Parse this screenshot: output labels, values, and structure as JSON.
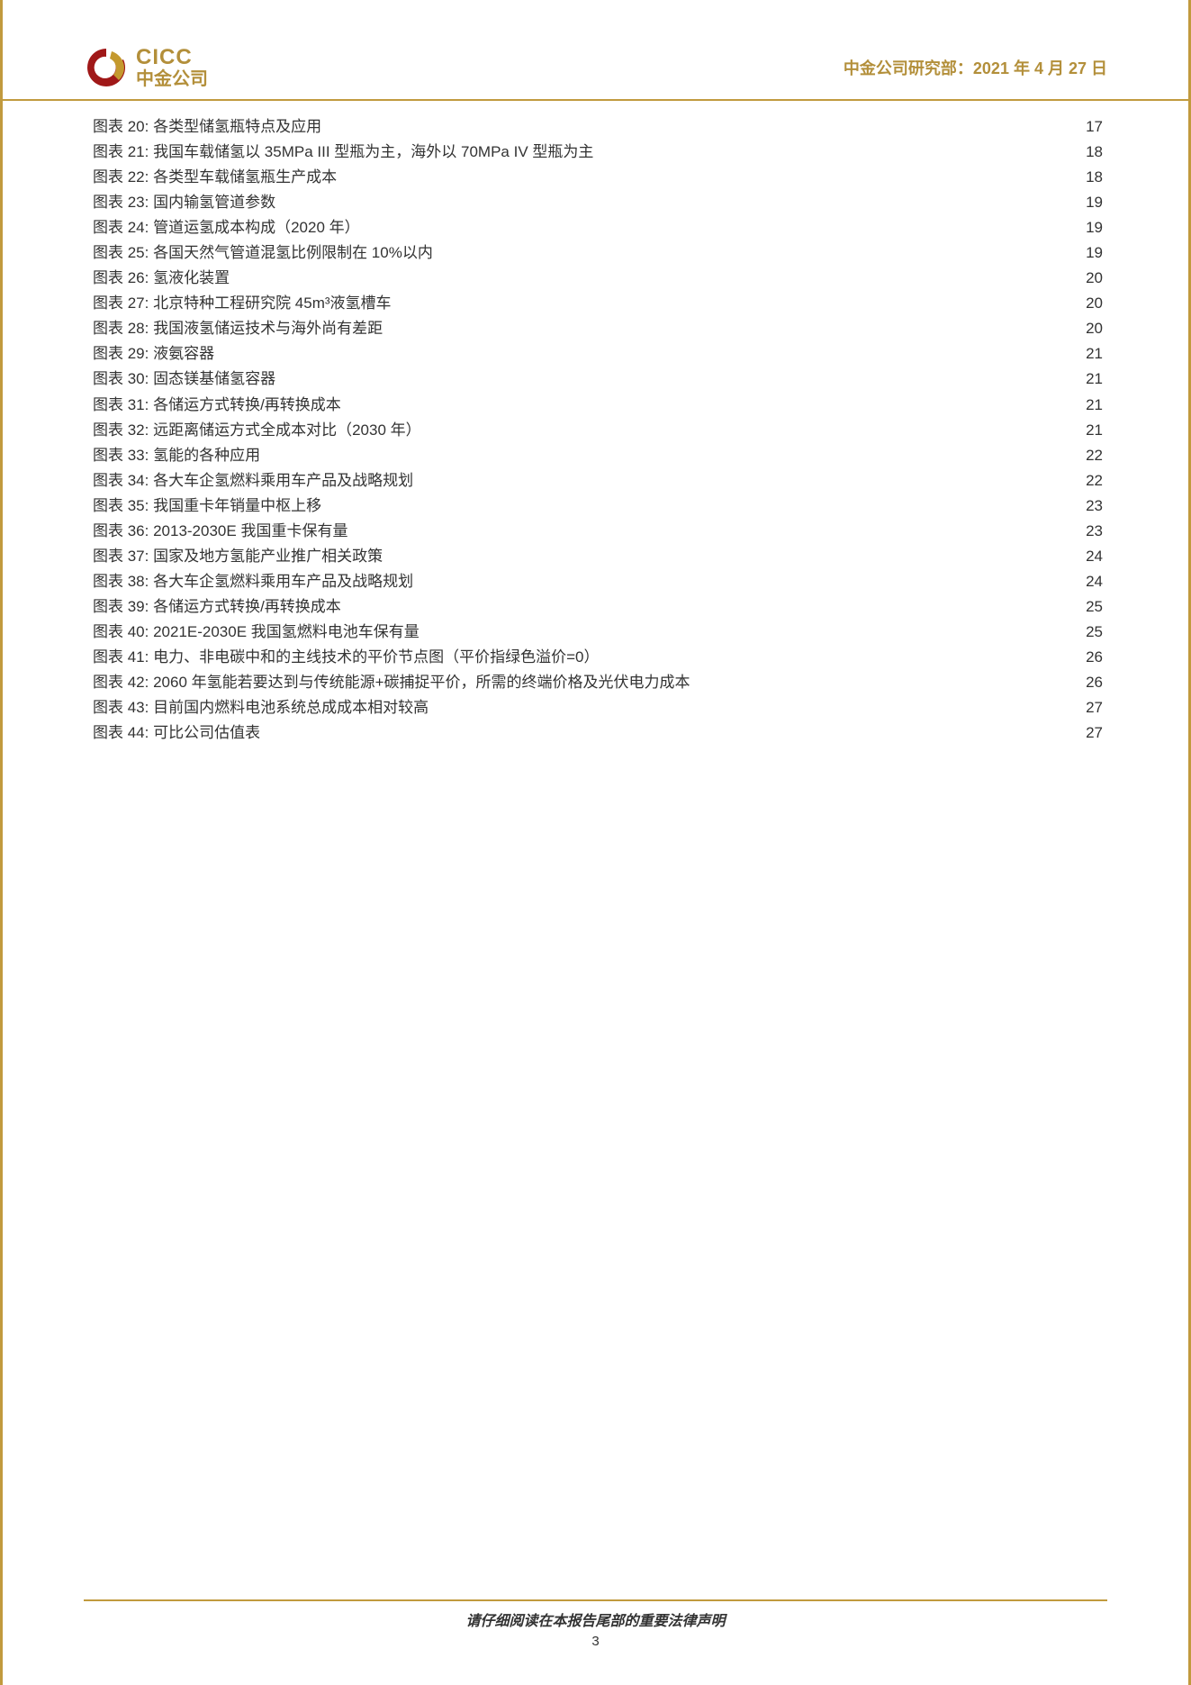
{
  "header": {
    "logo_en": "CICC",
    "logo_cn": "中金公司",
    "right_text": "中金公司研究部：2021 年 4 月 27 日"
  },
  "colors": {
    "accent": "#c19a3e",
    "accent_text": "#b38f3a",
    "logo_red": "#a01818",
    "logo_gold": "#c4992e",
    "text": "#333333",
    "bg": "#ffffff"
  },
  "typography": {
    "body_font": "Microsoft YaHei",
    "toc_fontsize": 17,
    "header_right_fontsize": 18,
    "logo_en_fontsize": 24,
    "logo_cn_fontsize": 20,
    "footer_fontsize": 16
  },
  "toc": {
    "prefix": "图表 ",
    "items": [
      {
        "num": "20",
        "title": "各类型储氢瓶特点及应用",
        "page": "17"
      },
      {
        "num": "21",
        "title": "我国车载储氢以 35MPa III 型瓶为主，海外以 70MPa IV 型瓶为主",
        "page": "18"
      },
      {
        "num": "22",
        "title": "各类型车载储氢瓶生产成本",
        "page": "18"
      },
      {
        "num": "23",
        "title": "国内输氢管道参数",
        "page": "19"
      },
      {
        "num": "24",
        "title": "管道运氢成本构成（2020 年）",
        "page": "19"
      },
      {
        "num": "25",
        "title": "各国天然气管道混氢比例限制在 10%以内",
        "page": "19"
      },
      {
        "num": "26",
        "title": "氢液化装置",
        "page": "20"
      },
      {
        "num": "27",
        "title": "北京特种工程研究院 45m³液氢槽车",
        "page": "20"
      },
      {
        "num": "28",
        "title": "我国液氢储运技术与海外尚有差距",
        "page": "20"
      },
      {
        "num": "29",
        "title": "液氨容器",
        "page": "21"
      },
      {
        "num": "30",
        "title": "固态镁基储氢容器",
        "page": "21"
      },
      {
        "num": "31",
        "title": "各储运方式转换/再转换成本",
        "page": "21"
      },
      {
        "num": "32",
        "title": "远距离储运方式全成本对比（2030 年）",
        "page": "21"
      },
      {
        "num": "33",
        "title": "氢能的各种应用",
        "page": "22"
      },
      {
        "num": "34",
        "title": "各大车企氢燃料乘用车产品及战略规划",
        "page": "22"
      },
      {
        "num": "35",
        "title": "我国重卡年销量中枢上移",
        "page": "23"
      },
      {
        "num": "36",
        "title": "2013-2030E 我国重卡保有量",
        "page": "23"
      },
      {
        "num": "37",
        "title": "国家及地方氢能产业推广相关政策",
        "page": "24"
      },
      {
        "num": "38",
        "title": "各大车企氢燃料乘用车产品及战略规划",
        "page": "24"
      },
      {
        "num": "39",
        "title": "各储运方式转换/再转换成本",
        "page": "25"
      },
      {
        "num": "40",
        "title": "2021E-2030E 我国氢燃料电池车保有量",
        "page": "25"
      },
      {
        "num": "41",
        "title": "电力、非电碳中和的主线技术的平价节点图（平价指绿色溢价=0）",
        "page": "26"
      },
      {
        "num": "42",
        "title": "2060 年氢能若要达到与传统能源+碳捕捉平价，所需的终端价格及光伏电力成本",
        "page": "26"
      },
      {
        "num": "43",
        "title": "目前国内燃料电池系统总成成本相对较高",
        "page": "27"
      },
      {
        "num": "44",
        "title": "可比公司估值表",
        "page": "27"
      }
    ]
  },
  "footer": {
    "text": "请仔细阅读在本报告尾部的重要法律声明",
    "page_number": "3"
  }
}
